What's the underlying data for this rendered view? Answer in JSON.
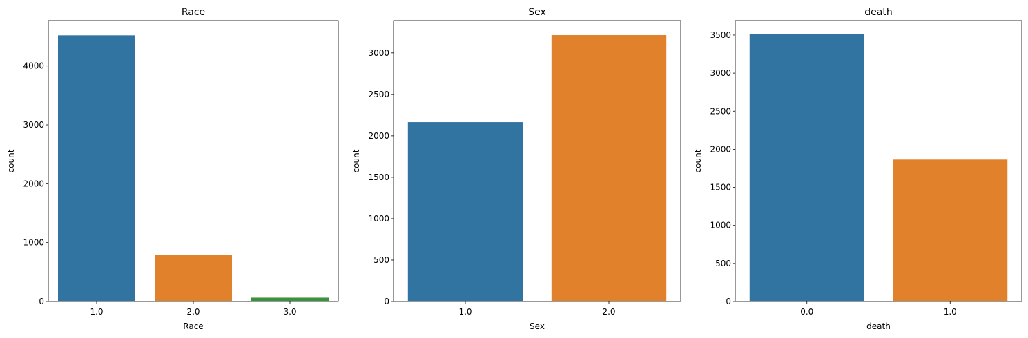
{
  "chart_data": [
    {
      "type": "bar",
      "title": "Race",
      "xlabel": "Race",
      "ylabel": "count",
      "categories": [
        "1.0",
        "2.0",
        "3.0"
      ],
      "values": [
        4520,
        790,
        65
      ],
      "colors": [
        "#3274a1",
        "#e1812c",
        "#3a923a"
      ],
      "ylim": [
        0,
        4770
      ],
      "yticks": [
        0,
        1000,
        2000,
        3000,
        4000
      ],
      "grid": false,
      "legend": "none"
    },
    {
      "type": "bar",
      "title": "Sex",
      "xlabel": "Sex",
      "ylabel": "count",
      "categories": [
        "1.0",
        "2.0"
      ],
      "values": [
        2165,
        3215
      ],
      "colors": [
        "#3274a1",
        "#e1812c"
      ],
      "ylim": [
        0,
        3390
      ],
      "yticks": [
        0,
        500,
        1000,
        1500,
        2000,
        2500,
        3000
      ],
      "grid": false,
      "legend": "none"
    },
    {
      "type": "bar",
      "title": "death",
      "xlabel": "death",
      "ylabel": "count",
      "categories": [
        "0.0",
        "1.0"
      ],
      "values": [
        3510,
        1865
      ],
      "colors": [
        "#3274a1",
        "#e1812c"
      ],
      "ylim": [
        0,
        3690
      ],
      "yticks": [
        0,
        500,
        1000,
        1500,
        2000,
        2500,
        3000,
        3500
      ],
      "grid": false,
      "legend": "none"
    }
  ]
}
